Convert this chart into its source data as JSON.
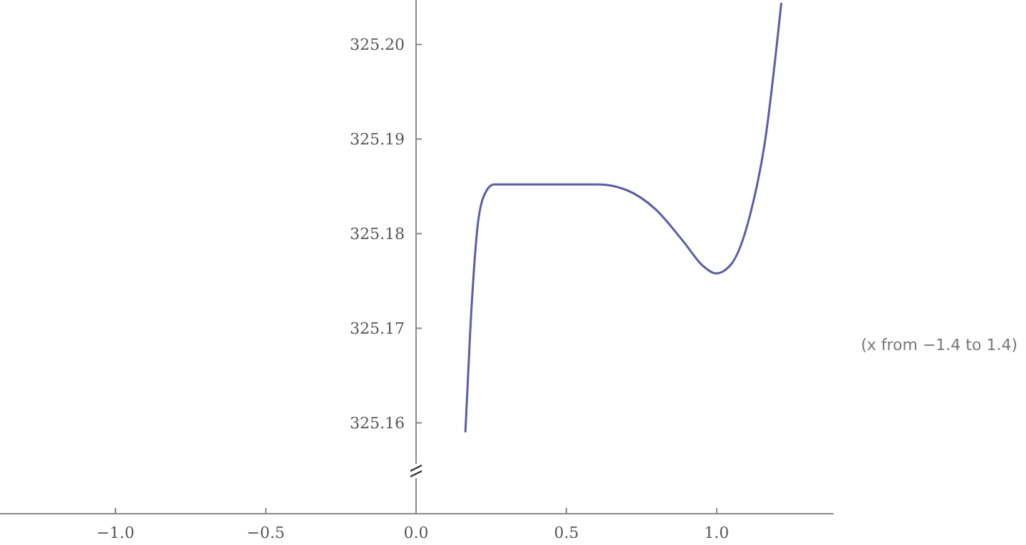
{
  "chart_data": {
    "type": "line",
    "xlim": [
      -1.384,
      1.389
    ],
    "ylim": [
      325.1504,
      325.2047
    ],
    "xticks": [
      {
        "value": -1,
        "label": "−1.0"
      },
      {
        "value": -0.5,
        "label": "−0.5"
      },
      {
        "value": 0,
        "label": "0.0"
      },
      {
        "value": 0.5,
        "label": "0.5"
      },
      {
        "value": 1,
        "label": "1.0"
      }
    ],
    "yticks": [
      {
        "value": 325.16,
        "label": "325.16"
      },
      {
        "value": 325.17,
        "label": "325.17"
      },
      {
        "value": 325.18,
        "label": "325.18"
      },
      {
        "value": 325.19,
        "label": "325.19"
      },
      {
        "value": 325.2,
        "label": "325.20"
      }
    ],
    "x": [
      0.164,
      0.18,
      0.204,
      0.227,
      0.259,
      0.4,
      0.607,
      0.701,
      0.796,
      0.891,
      0.954,
      0.998,
      1.049,
      1.112,
      1.16,
      1.215
    ],
    "series": [
      {
        "color": "#5c5ca8",
        "values": [
          325.159,
          325.1696,
          325.1806,
          325.1841,
          325.1852,
          325.1852,
          325.1852,
          325.1846,
          325.1826,
          325.1791,
          325.1766,
          325.1758,
          325.1768,
          325.1821,
          325.1896,
          325.2044
        ]
      }
    ],
    "annotations": [
      "(x from −1.4 to 1.4)"
    ],
    "grid": false,
    "marker": "none",
    "line_style": "solid"
  }
}
